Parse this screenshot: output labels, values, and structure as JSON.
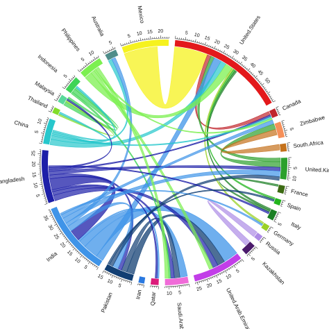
{
  "chart_data": {
    "type": "chord",
    "title": "",
    "groups": [
      {
        "name": "United.States",
        "color": "#e3191b",
        "value": 60,
        "ticks": [
          "5",
          "10",
          "15",
          "20",
          "25",
          "30",
          "35",
          "40",
          "45",
          "50"
        ]
      },
      {
        "name": "Canada",
        "color": "#c0262d",
        "value": 4,
        "ticks": []
      },
      {
        "name": "Zimbabwe",
        "color": "#f5905a",
        "value": 8,
        "ticks": [
          "5"
        ]
      },
      {
        "name": "South.Africa",
        "color": "#c4711b",
        "value": 4,
        "ticks": []
      },
      {
        "name": "United.Kingdom",
        "color": "#2ca02c",
        "value": 11,
        "ticks": [
          "5",
          "10"
        ]
      },
      {
        "name": "France",
        "color": "#3d6b14",
        "value": 4,
        "ticks": []
      },
      {
        "name": "Spain",
        "color": "#22b51e",
        "value": 3,
        "ticks": []
      },
      {
        "name": "Italy",
        "color": "#1b7f24",
        "value": 5,
        "ticks": [
          "5"
        ]
      },
      {
        "name": "Germany",
        "color": "#9ad126",
        "value": 3,
        "ticks": []
      },
      {
        "name": "Russia",
        "color": "#ad8be6",
        "value": 3,
        "ticks": []
      },
      {
        "name": "Kazakhstan",
        "color": "#4b1a6c",
        "value": 6,
        "ticks": [
          "5"
        ]
      },
      {
        "name": "United.Arab.Emirates",
        "color": "#c23ee8",
        "value": 26,
        "ticks": [
          "5",
          "10",
          "15",
          "20",
          "25"
        ]
      },
      {
        "name": "Saudi.Arabia",
        "color": "#f06bd8",
        "value": 12,
        "ticks": [
          "5",
          "10"
        ]
      },
      {
        "name": "Qatar",
        "color": "#dc1b7a",
        "value": 4,
        "ticks": []
      },
      {
        "name": "Iran",
        "color": "#2a79e0",
        "value": 3,
        "ticks": []
      },
      {
        "name": "Pakistan",
        "color": "#123f73",
        "value": 15,
        "ticks": [
          "5",
          "10",
          "15"
        ]
      },
      {
        "name": "India",
        "color": "#3f94e8",
        "value": 38,
        "ticks": [
          "5",
          "10",
          "15",
          "20",
          "25",
          "30",
          "35"
        ]
      },
      {
        "name": "Bangladesh",
        "color": "#1d1fa8",
        "value": 27,
        "ticks": [
          "5",
          "10",
          "15",
          "20",
          "25"
        ]
      },
      {
        "name": "China",
        "color": "#27c7cc",
        "value": 13,
        "ticks": [
          "5",
          "10"
        ]
      },
      {
        "name": "Thailand",
        "color": "#82dd2a",
        "value": 3,
        "ticks": []
      },
      {
        "name": "Malaysia",
        "color": "#59d99a",
        "value": 4,
        "ticks": []
      },
      {
        "name": "Indonesia",
        "color": "#3fd456",
        "value": 8,
        "ticks": [
          "5"
        ]
      },
      {
        "name": "Philippines",
        "color": "#7cf050",
        "value": 12,
        "ticks": [
          "5",
          "10"
        ]
      },
      {
        "name": "Australia",
        "color": "#4f8d8a",
        "value": 6,
        "ticks": [
          "5"
        ]
      },
      {
        "name": "Mexico",
        "color": "#f6f21e",
        "value": 24,
        "ticks": [
          "5",
          "10",
          "15",
          "20"
        ]
      }
    ],
    "links": [
      {
        "source": "Mexico",
        "target": "United.States",
        "value": 18
      },
      {
        "source": "Canada",
        "target": "United.States",
        "value": 2
      },
      {
        "source": "United.Kingdom",
        "target": "United.States",
        "value": 2
      },
      {
        "source": "India",
        "target": "United.States",
        "value": 4
      },
      {
        "source": "China",
        "target": "United.States",
        "value": 3
      },
      {
        "source": "Philippines",
        "target": "United.States",
        "value": 4
      },
      {
        "source": "Germany",
        "target": "United.States",
        "value": 1
      },
      {
        "source": "Spain",
        "target": "United.States",
        "value": 1
      },
      {
        "source": "Italy",
        "target": "United.States",
        "value": 1
      },
      {
        "source": "United.Kingdom",
        "target": "Zimbabwe",
        "value": 3
      },
      {
        "source": "South.Africa",
        "target": "Zimbabwe",
        "value": 3
      },
      {
        "source": "Italy",
        "target": "France",
        "value": 1
      },
      {
        "source": "Russia",
        "target": "Kazakhstan",
        "value": 3
      },
      {
        "source": "India",
        "target": "United.Arab.Emirates",
        "value": 8
      },
      {
        "source": "Pakistan",
        "target": "United.Arab.Emirates",
        "value": 4
      },
      {
        "source": "Bangladesh",
        "target": "United.Arab.Emirates",
        "value": 3
      },
      {
        "source": "Philippines",
        "target": "United.Arab.Emirates",
        "value": 2
      },
      {
        "source": "India",
        "target": "Saudi.Arabia",
        "value": 4
      },
      {
        "source": "Pakistan",
        "target": "Saudi.Arabia",
        "value": 3
      },
      {
        "source": "Bangladesh",
        "target": "Saudi.Arabia",
        "value": 2
      },
      {
        "source": "Indonesia",
        "target": "Saudi.Arabia",
        "value": 1
      },
      {
        "source": "India",
        "target": "Qatar",
        "value": 1
      },
      {
        "source": "Bangladesh",
        "target": "Qatar",
        "value": 1
      },
      {
        "source": "Bangladesh",
        "target": "India",
        "value": 6
      },
      {
        "source": "Bangladesh",
        "target": "Pakistan",
        "value": 2
      },
      {
        "source": "India",
        "target": "Pakistan",
        "value": 3
      },
      {
        "source": "Indonesia",
        "target": "Malaysia",
        "value": 2
      },
      {
        "source": "China",
        "target": "Australia",
        "value": 2
      },
      {
        "source": "India",
        "target": "Australia",
        "value": 2
      },
      {
        "source": "Bangladesh",
        "target": "United.Kingdom",
        "value": 2
      },
      {
        "source": "India",
        "target": "United.Kingdom",
        "value": 3
      },
      {
        "source": "Pakistan",
        "target": "United.Kingdom",
        "value": 2
      },
      {
        "source": "Bangladesh",
        "target": "Canada",
        "value": 1
      },
      {
        "source": "China",
        "target": "Canada",
        "value": 1
      },
      {
        "source": "Philippines",
        "target": "Canada",
        "value": 1
      },
      {
        "source": "India",
        "target": "Canada",
        "value": 2
      },
      {
        "source": "Thailand",
        "target": "Malaysia",
        "value": 1
      },
      {
        "source": "China",
        "target": "Thailand",
        "value": 1
      },
      {
        "source": "Bangladesh",
        "target": "Malaysia",
        "value": 1
      },
      {
        "source": "Indonesia",
        "target": "Malaysia",
        "value": 1
      },
      {
        "source": "Philippines",
        "target": "Saudi.Arabia",
        "value": 2
      },
      {
        "source": "China",
        "target": "Indonesia",
        "value": 1
      },
      {
        "source": "Bangladesh",
        "target": "Italy",
        "value": 1
      },
      {
        "source": "India",
        "target": "Germany",
        "value": 1
      },
      {
        "source": "Pakistan",
        "target": "Spain",
        "value": 1
      }
    ]
  }
}
